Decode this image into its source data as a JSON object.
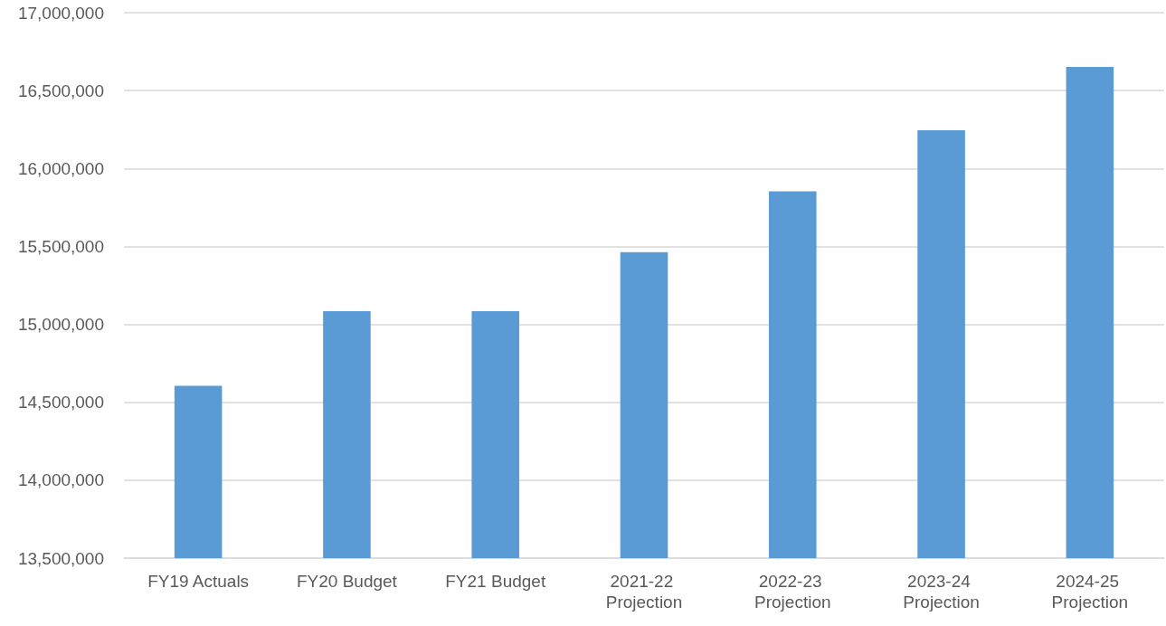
{
  "chart_data": {
    "type": "bar",
    "categories": [
      "FY19 Actuals",
      "FY20 Budget",
      "FY21 Budget",
      "2021-22 Projection",
      "2022-23 Projection",
      "2023-24 Projection",
      "2024-25 Projection"
    ],
    "values": [
      14605000,
      15085000,
      15085000,
      15463000,
      15853000,
      16245000,
      16652000
    ],
    "color": "#5b9bd5",
    "ylim": [
      13500000,
      17000000
    ],
    "yticks": [
      {
        "value": 13500000,
        "label": "13,500,000"
      },
      {
        "value": 14000000,
        "label": "14,000,000"
      },
      {
        "value": 14500000,
        "label": "14,500,000"
      },
      {
        "value": 15000000,
        "label": "15,000,000"
      },
      {
        "value": 15500000,
        "label": "15,500,000"
      },
      {
        "value": 16000000,
        "label": "16,000,000"
      },
      {
        "value": 16500000,
        "label": "16,500,000"
      },
      {
        "value": 17000000,
        "label": "17,000,000"
      }
    ],
    "grid": "y"
  }
}
